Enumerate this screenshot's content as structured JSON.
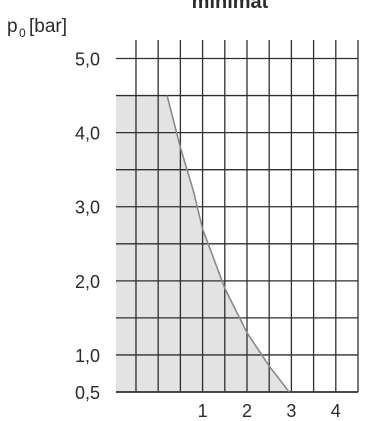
{
  "chart_data": {
    "type": "area",
    "title": "minimat",
    "ylabel_main": "p",
    "ylabel_sub": "0",
    "ylabel_unit": "[bar]",
    "xlabel": "",
    "xlim": [
      -0.95,
      4.5
    ],
    "ylim": [
      0.5,
      5.25
    ],
    "x_ticks": [
      1,
      2,
      3,
      4
    ],
    "x_tick_labels": [
      "1",
      "2",
      "3",
      "4"
    ],
    "y_ticks": [
      0.5,
      1.0,
      2.0,
      3.0,
      4.0,
      5.0
    ],
    "y_tick_labels": [
      "0,5",
      "1,0",
      "2,0",
      "3,0",
      "4,0",
      "5,0"
    ],
    "grid": true,
    "series": [
      {
        "values": [
          {
            "x": -0.95,
            "y": 4.5
          },
          {
            "x": 0.2,
            "y": 4.5
          },
          {
            "x": 0.5,
            "y": 3.8
          },
          {
            "x": 0.8,
            "y": 3.2
          },
          {
            "x": 1.0,
            "y": 2.7
          },
          {
            "x": 1.5,
            "y": 1.9
          },
          {
            "x": 2.0,
            "y": 1.3
          },
          {
            "x": 2.5,
            "y": 0.85
          },
          {
            "x": 2.95,
            "y": 0.5
          }
        ]
      }
    ],
    "colors": {
      "fill": "#e3e3e3",
      "curve": "#8a8a8a",
      "grid": "#2f2f2f",
      "text": "#2b2b2b"
    }
  }
}
